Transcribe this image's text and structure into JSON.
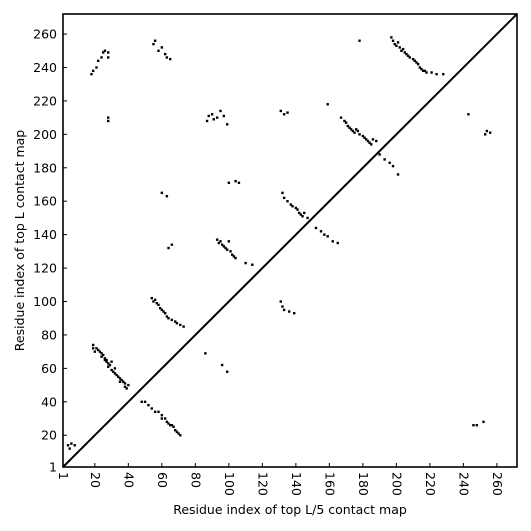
{
  "chart_data": {
    "type": "scatter",
    "title": "",
    "xlabel": "Residue index of top L/5 contact map",
    "ylabel": "Residue index of top L contact map",
    "xlim": [
      1,
      272
    ],
    "ylim": [
      1,
      272
    ],
    "grid": false,
    "xticks": [
      {
        "value": 1,
        "label": "1"
      },
      {
        "value": 20,
        "label": "20"
      },
      {
        "value": 40,
        "label": "40"
      },
      {
        "value": 60,
        "label": "60"
      },
      {
        "value": 80,
        "label": "80"
      },
      {
        "value": 100,
        "label": "100"
      },
      {
        "value": 120,
        "label": "120"
      },
      {
        "value": 140,
        "label": "140"
      },
      {
        "value": 160,
        "label": "160"
      },
      {
        "value": 180,
        "label": "180"
      },
      {
        "value": 200,
        "label": "200"
      },
      {
        "value": 220,
        "label": "220"
      },
      {
        "value": 240,
        "label": "240"
      },
      {
        "value": 260,
        "label": "260"
      }
    ],
    "yticks": [
      {
        "value": 1,
        "label": "1"
      },
      {
        "value": 20,
        "label": "20"
      },
      {
        "value": 40,
        "label": "40"
      },
      {
        "value": 60,
        "label": "60"
      },
      {
        "value": 80,
        "label": "80"
      },
      {
        "value": 100,
        "label": "100"
      },
      {
        "value": 120,
        "label": "120"
      },
      {
        "value": 140,
        "label": "140"
      },
      {
        "value": 160,
        "label": "160"
      },
      {
        "value": 180,
        "label": "180"
      },
      {
        "value": 200,
        "label": "200"
      },
      {
        "value": 220,
        "label": "220"
      },
      {
        "value": 240,
        "label": "240"
      },
      {
        "value": 260,
        "label": "260"
      }
    ],
    "diagonal": {
      "from": [
        1,
        1
      ],
      "to": [
        272,
        272
      ]
    },
    "series": [
      {
        "points": [
          [
            4,
            14
          ],
          [
            5,
            12
          ],
          [
            6,
            15
          ],
          [
            8,
            14
          ],
          [
            18,
            236
          ],
          [
            19,
            238
          ],
          [
            21,
            240
          ],
          [
            22,
            244
          ],
          [
            24,
            246
          ],
          [
            25,
            249
          ],
          [
            26,
            250
          ],
          [
            28,
            249
          ],
          [
            28,
            246
          ],
          [
            28,
            208
          ],
          [
            28,
            210
          ],
          [
            19,
            72
          ],
          [
            19,
            74
          ],
          [
            20,
            70
          ],
          [
            21,
            72
          ],
          [
            22,
            71
          ],
          [
            23,
            70
          ],
          [
            24,
            69
          ],
          [
            24,
            67
          ],
          [
            25,
            68
          ],
          [
            26,
            66
          ],
          [
            26,
            65
          ],
          [
            27,
            65
          ],
          [
            27,
            64
          ],
          [
            28,
            63
          ],
          [
            28,
            61
          ],
          [
            29,
            62
          ],
          [
            30,
            59
          ],
          [
            30,
            64
          ],
          [
            31,
            58
          ],
          [
            32,
            57
          ],
          [
            32,
            60
          ],
          [
            33,
            56
          ],
          [
            34,
            55
          ],
          [
            35,
            54
          ],
          [
            35,
            52
          ],
          [
            36,
            53
          ],
          [
            37,
            52
          ],
          [
            38,
            51
          ],
          [
            38,
            49
          ],
          [
            39,
            48
          ],
          [
            40,
            50
          ],
          [
            48,
            40
          ],
          [
            50,
            40
          ],
          [
            52,
            38
          ],
          [
            54,
            36
          ],
          [
            56,
            34
          ],
          [
            58,
            34
          ],
          [
            60,
            32
          ],
          [
            60,
            30
          ],
          [
            62,
            30
          ],
          [
            63,
            28
          ],
          [
            64,
            27
          ],
          [
            65,
            26
          ],
          [
            66,
            26
          ],
          [
            67,
            25
          ],
          [
            68,
            23
          ],
          [
            69,
            22
          ],
          [
            70,
            21
          ],
          [
            71,
            20
          ],
          [
            55,
            254
          ],
          [
            56,
            256
          ],
          [
            58,
            250
          ],
          [
            60,
            252
          ],
          [
            62,
            248
          ],
          [
            63,
            246
          ],
          [
            65,
            245
          ],
          [
            54,
            102
          ],
          [
            55,
            100
          ],
          [
            56,
            101
          ],
          [
            57,
            99
          ],
          [
            58,
            98
          ],
          [
            59,
            96
          ],
          [
            60,
            95
          ],
          [
            61,
            94
          ],
          [
            62,
            93
          ],
          [
            63,
            91
          ],
          [
            64,
            90
          ],
          [
            66,
            89
          ],
          [
            68,
            88
          ],
          [
            69,
            87
          ],
          [
            71,
            86
          ],
          [
            73,
            85
          ],
          [
            60,
            165
          ],
          [
            63,
            163
          ],
          [
            64,
            132
          ],
          [
            66,
            134
          ],
          [
            86,
            69
          ],
          [
            87,
            208
          ],
          [
            88,
            211
          ],
          [
            90,
            212
          ],
          [
            91,
            209
          ],
          [
            93,
            210
          ],
          [
            95,
            214
          ],
          [
            97,
            211
          ],
          [
            99,
            206
          ],
          [
            93,
            137
          ],
          [
            94,
            135
          ],
          [
            95,
            136
          ],
          [
            96,
            134
          ],
          [
            97,
            133
          ],
          [
            98,
            132
          ],
          [
            99,
            131
          ],
          [
            100,
            136
          ],
          [
            101,
            130
          ],
          [
            102,
            128
          ],
          [
            103,
            127
          ],
          [
            104,
            126
          ],
          [
            110,
            123
          ],
          [
            114,
            122
          ],
          [
            96,
            62
          ],
          [
            99,
            58
          ],
          [
            100,
            171
          ],
          [
            104,
            172
          ],
          [
            106,
            171
          ],
          [
            131,
            100
          ],
          [
            132,
            97
          ],
          [
            133,
            95
          ],
          [
            136,
            94
          ],
          [
            139,
            93
          ],
          [
            131,
            214
          ],
          [
            133,
            212
          ],
          [
            135,
            213
          ],
          [
            132,
            165
          ],
          [
            133,
            162
          ],
          [
            135,
            160
          ],
          [
            137,
            158
          ],
          [
            138,
            157
          ],
          [
            140,
            156
          ],
          [
            141,
            155
          ],
          [
            142,
            153
          ],
          [
            143,
            152
          ],
          [
            144,
            151
          ],
          [
            145,
            153
          ],
          [
            147,
            150
          ],
          [
            152,
            144
          ],
          [
            155,
            142
          ],
          [
            157,
            140
          ],
          [
            159,
            139
          ],
          [
            162,
            136
          ],
          [
            165,
            135
          ],
          [
            159,
            218
          ],
          [
            167,
            210
          ],
          [
            169,
            208
          ],
          [
            170,
            207
          ],
          [
            171,
            205
          ],
          [
            172,
            204
          ],
          [
            173,
            203
          ],
          [
            174,
            202
          ],
          [
            175,
            201
          ],
          [
            176,
            203
          ],
          [
            177,
            202
          ],
          [
            178,
            200
          ],
          [
            180,
            199
          ],
          [
            181,
            198
          ],
          [
            182,
            197
          ],
          [
            183,
            196
          ],
          [
            184,
            195
          ],
          [
            185,
            194
          ],
          [
            186,
            197
          ],
          [
            188,
            196
          ],
          [
            178,
            256
          ],
          [
            190,
            188
          ],
          [
            193,
            185
          ],
          [
            196,
            183
          ],
          [
            198,
            181
          ],
          [
            201,
            176
          ],
          [
            197,
            258
          ],
          [
            198,
            256
          ],
          [
            199,
            254
          ],
          [
            200,
            253
          ],
          [
            201,
            255
          ],
          [
            202,
            252
          ],
          [
            203,
            250
          ],
          [
            204,
            251
          ],
          [
            205,
            249
          ],
          [
            206,
            248
          ],
          [
            207,
            247
          ],
          [
            208,
            246
          ],
          [
            210,
            245
          ],
          [
            211,
            244
          ],
          [
            212,
            243
          ],
          [
            213,
            242
          ],
          [
            214,
            240
          ],
          [
            215,
            239
          ],
          [
            216,
            238
          ],
          [
            217,
            238
          ],
          [
            218,
            237
          ],
          [
            221,
            237
          ],
          [
            224,
            236
          ],
          [
            228,
            236
          ],
          [
            243,
            212
          ],
          [
            246,
            26
          ],
          [
            248,
            26
          ],
          [
            252,
            28
          ],
          [
            253,
            200
          ],
          [
            254,
            202
          ],
          [
            256,
            201
          ]
        ]
      }
    ]
  }
}
